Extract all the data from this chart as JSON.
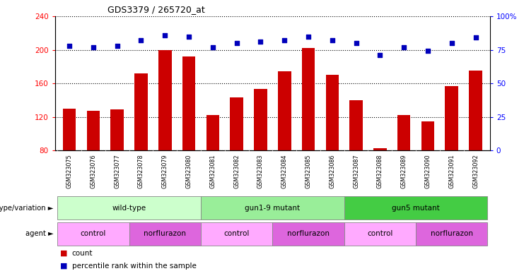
{
  "title": "GDS3379 / 265720_at",
  "samples": [
    "GSM323075",
    "GSM323076",
    "GSM323077",
    "GSM323078",
    "GSM323079",
    "GSM323080",
    "GSM323081",
    "GSM323082",
    "GSM323083",
    "GSM323084",
    "GSM323085",
    "GSM323086",
    "GSM323087",
    "GSM323088",
    "GSM323089",
    "GSM323090",
    "GSM323091",
    "GSM323092"
  ],
  "counts": [
    130,
    127,
    129,
    172,
    200,
    192,
    122,
    143,
    153,
    174,
    202,
    170,
    140,
    83,
    122,
    115,
    157,
    175
  ],
  "percentile_ranks": [
    78,
    77,
    78,
    82,
    86,
    85,
    77,
    80,
    81,
    82,
    85,
    82,
    80,
    71,
    77,
    74,
    80,
    84
  ],
  "ylim_left": [
    80,
    240
  ],
  "ylim_right": [
    0,
    100
  ],
  "yticks_left": [
    80,
    120,
    160,
    200,
    240
  ],
  "yticks_right": [
    0,
    25,
    50,
    75,
    100
  ],
  "bar_color": "#CC0000",
  "dot_color": "#0000BB",
  "bar_bottom": 80,
  "genotype_groups": [
    {
      "label": "wild-type",
      "start": 0,
      "end": 5,
      "color": "#CCFFCC"
    },
    {
      "label": "gun1-9 mutant",
      "start": 6,
      "end": 11,
      "color": "#99EE99"
    },
    {
      "label": "gun5 mutant",
      "start": 12,
      "end": 17,
      "color": "#44CC44"
    }
  ],
  "agent_groups": [
    {
      "label": "control",
      "start": 0,
      "end": 2,
      "color": "#FFAAFF"
    },
    {
      "label": "norflurazon",
      "start": 3,
      "end": 5,
      "color": "#DD66DD"
    },
    {
      "label": "control",
      "start": 6,
      "end": 8,
      "color": "#FFAAFF"
    },
    {
      "label": "norflurazon",
      "start": 9,
      "end": 11,
      "color": "#DD66DD"
    },
    {
      "label": "control",
      "start": 12,
      "end": 14,
      "color": "#FFAAFF"
    },
    {
      "label": "norflurazon",
      "start": 15,
      "end": 17,
      "color": "#DD66DD"
    }
  ],
  "fig_width": 7.41,
  "fig_height": 3.84,
  "fig_dpi": 100
}
